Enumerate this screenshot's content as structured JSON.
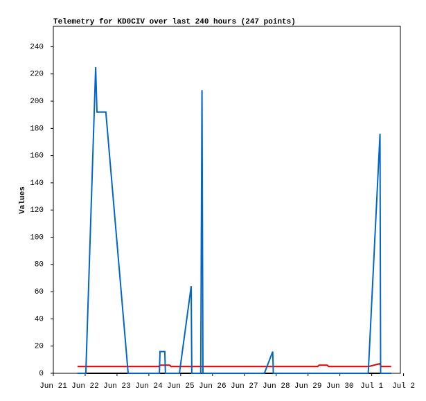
{
  "chart_data": {
    "type": "line",
    "title": "Telemetry for KD0CIV over last 240 hours (247 points)",
    "y_label": "Values",
    "xlim": [
      0,
      10.9
    ],
    "xticks": [
      {
        "value": 0,
        "label": "Jun 21"
      },
      {
        "value": 1,
        "label": "Jun 22"
      },
      {
        "value": 2,
        "label": "Jun 23"
      },
      {
        "value": 3,
        "label": "Jun 24"
      },
      {
        "value": 4,
        "label": "Jun 25"
      },
      {
        "value": 5,
        "label": "Jun 26"
      },
      {
        "value": 6,
        "label": "Jun 27"
      },
      {
        "value": 7,
        "label": "Jun 28"
      },
      {
        "value": 8,
        "label": "Jun 29"
      },
      {
        "value": 9,
        "label": "Jun 30"
      },
      {
        "value": 10,
        "label": "Jul 1"
      },
      {
        "value": 11,
        "label": "Jul 2"
      }
    ],
    "ylim": [
      0,
      255
    ],
    "yticks": [
      0,
      20,
      40,
      60,
      80,
      100,
      120,
      140,
      160,
      180,
      200,
      220,
      240
    ],
    "series": [
      {
        "color": "#000000",
        "x": [
          0.76,
          10.61
        ],
        "values": [
          0,
          0
        ]
      },
      {
        "color": "#e00000",
        "x": [
          0.76,
          3.3,
          3.35,
          3.65,
          3.7,
          8.3,
          8.35,
          8.6,
          8.65,
          9.9,
          10.25,
          10.3,
          10.61
        ],
        "values": [
          5,
          5,
          6,
          6,
          5,
          5,
          6,
          6,
          5,
          5,
          7,
          5,
          5
        ]
      },
      {
        "color": "#0066cc",
        "x": [
          0.76,
          1.02,
          1.33,
          1.37,
          1.65,
          2.35,
          3.33,
          3.35,
          3.5,
          3.52,
          3.96,
          4.33,
          4.35,
          4.63,
          4.65,
          4.67,
          4.7,
          6.63,
          6.89,
          6.91,
          9.89,
          10.26,
          10.28,
          10.61
        ],
        "values": [
          0,
          0,
          225,
          192,
          192,
          0,
          0,
          16,
          16,
          0,
          0,
          64,
          0,
          0,
          105,
          208,
          0,
          0,
          16,
          0,
          0,
          176,
          0,
          0
        ]
      }
    ]
  }
}
